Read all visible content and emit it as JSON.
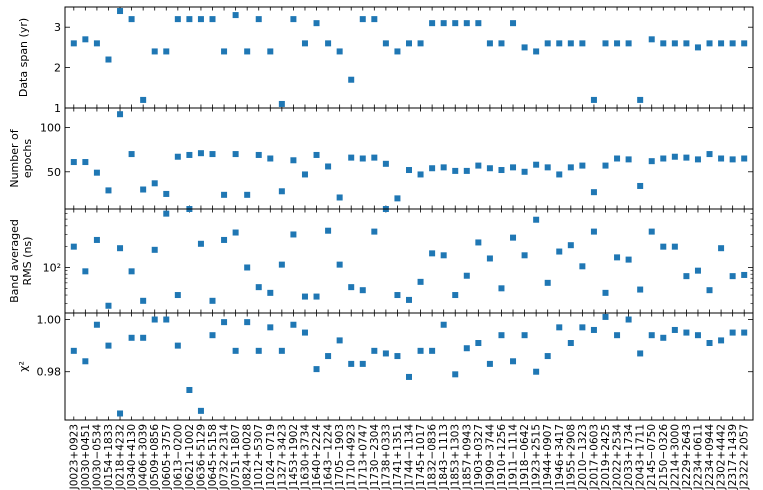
{
  "chart_data": [
    {
      "type": "scatter",
      "ylabel": "Data span (yr)",
      "ylim": [
        1,
        3.5
      ],
      "yticks": [
        1,
        2,
        3
      ],
      "marker_color": "#1f77b4",
      "categories": [
        "J0023+0923",
        "J0030+0451",
        "J0030−0534",
        "J0154+1833",
        "J0218+4232",
        "J0340+4130",
        "J0406+3039",
        "J0509+0856",
        "J0605+3757",
        "J0613−0200",
        "J0621+1002",
        "J0636+5129",
        "J0645+5158",
        "J0732+2314",
        "J0751+1807",
        "J0824+0028",
        "J1012+5307",
        "J1024−0719",
        "J1327+3423",
        "J1453+1902",
        "J1630+3734",
        "J1640+2224",
        "J1643−1224",
        "J1705−1903",
        "J1710+4923",
        "J1713+0747",
        "J1730−2304",
        "J1738+0333",
        "J1741+1351",
        "J1744−1134",
        "J1745+1017",
        "J1832−0836",
        "J1843−1113",
        "J1853+1303",
        "J1857+0943",
        "J1903+0327",
        "J1909−3744",
        "J1910+1256",
        "J1911−1114",
        "J1918−0642",
        "J1923+2515",
        "J1944+0907",
        "J1946+3417",
        "J1955+2908",
        "J2010−1323",
        "J2017+0603",
        "J2019+2425",
        "J2022+2534",
        "J2033+1734",
        "J2043+1711",
        "J2145−0750",
        "J2150−0326",
        "J2214+3000",
        "J2229+2643",
        "J2234+0611",
        "J2234+0944",
        "J2302+4442",
        "J2317+1439",
        "J2322+2057"
      ],
      "values": [
        2.6,
        2.7,
        2.6,
        2.2,
        3.4,
        3.2,
        1.2,
        2.4,
        2.4,
        3.2,
        3.2,
        3.2,
        3.2,
        2.4,
        3.3,
        2.4,
        3.2,
        2.4,
        1.1,
        3.2,
        2.6,
        3.1,
        2.6,
        2.4,
        1.7,
        3.2,
        3.2,
        2.6,
        2.4,
        2.6,
        2.6,
        3.1,
        3.1,
        3.1,
        3.1,
        3.1,
        2.6,
        2.6,
        3.1,
        2.5,
        2.4,
        2.6,
        2.6,
        2.6,
        2.6,
        1.2,
        2.6,
        2.6,
        2.6,
        1.2,
        2.7,
        2.6,
        2.6,
        2.6,
        2.5,
        2.6,
        2.6,
        2.6,
        2.6
      ]
    },
    {
      "type": "scatter",
      "ylabel": "Number of epochs",
      "ylim": [
        8,
        122
      ],
      "yticks": [
        50,
        100
      ],
      "marker_color": "#1f77b4",
      "values": [
        61,
        61,
        49,
        29,
        115,
        70,
        30,
        37,
        25,
        67,
        69,
        71,
        70,
        24,
        70,
        24,
        69,
        65,
        28,
        63,
        47,
        69,
        56,
        21,
        66,
        65,
        66,
        59,
        20,
        52,
        47,
        54,
        55,
        51,
        51,
        57,
        54,
        52,
        55,
        50,
        58,
        55,
        47,
        55,
        57,
        27,
        57,
        65,
        64,
        34,
        62,
        65,
        67,
        66,
        64,
        70,
        65,
        64,
        65
      ]
    },
    {
      "type": "scatter",
      "ylabel": "Band averaged RMS (ns)",
      "yscale": "log",
      "ylim": [
        22,
        700
      ],
      "yticks": [
        100
      ],
      "ytick_labels": [
        "10²"
      ],
      "marker_color": "#1f77b4",
      "values": [
        200,
        88,
        250,
        28,
        190,
        88,
        33,
        180,
        600,
        40,
        700,
        220,
        33,
        250,
        320,
        100,
        52,
        43,
        110,
        300,
        38,
        38,
        340,
        110,
        52,
        47,
        330,
        700,
        40,
        34,
        62,
        160,
        150,
        40,
        76,
        230,
        135,
        50,
        270,
        150,
        490,
        60,
        170,
        210,
        104,
        330,
        43,
        140,
        130,
        48,
        330,
        200,
        200,
        75,
        90,
        47,
        190,
        75,
        78
      ]
    },
    {
      "type": "scatter",
      "ylabel": "χ²",
      "ylim": [
        0.9615,
        1.0025
      ],
      "yticks": [
        0.98,
        1.0
      ],
      "ytick_labels": [
        "0.98",
        "1.00"
      ],
      "marker_color": "#1f77b4",
      "values": [
        0.988,
        0.984,
        0.998,
        0.99,
        0.964,
        0.993,
        0.993,
        1.0,
        1.0,
        0.99,
        0.973,
        0.965,
        0.994,
        0.999,
        0.988,
        0.999,
        0.988,
        0.997,
        0.988,
        0.998,
        0.995,
        0.981,
        0.986,
        0.992,
        0.983,
        0.983,
        0.988,
        0.987,
        0.986,
        0.978,
        0.988,
        0.988,
        0.998,
        0.979,
        0.989,
        0.991,
        0.983,
        0.994,
        0.984,
        0.994,
        0.98,
        0.986,
        0.997,
        0.991,
        0.997,
        0.996,
        1.001,
        0.994,
        1.0,
        0.987,
        0.994,
        0.993,
        0.996,
        0.995,
        0.994,
        0.991,
        0.992,
        0.995,
        0.995
      ]
    }
  ]
}
